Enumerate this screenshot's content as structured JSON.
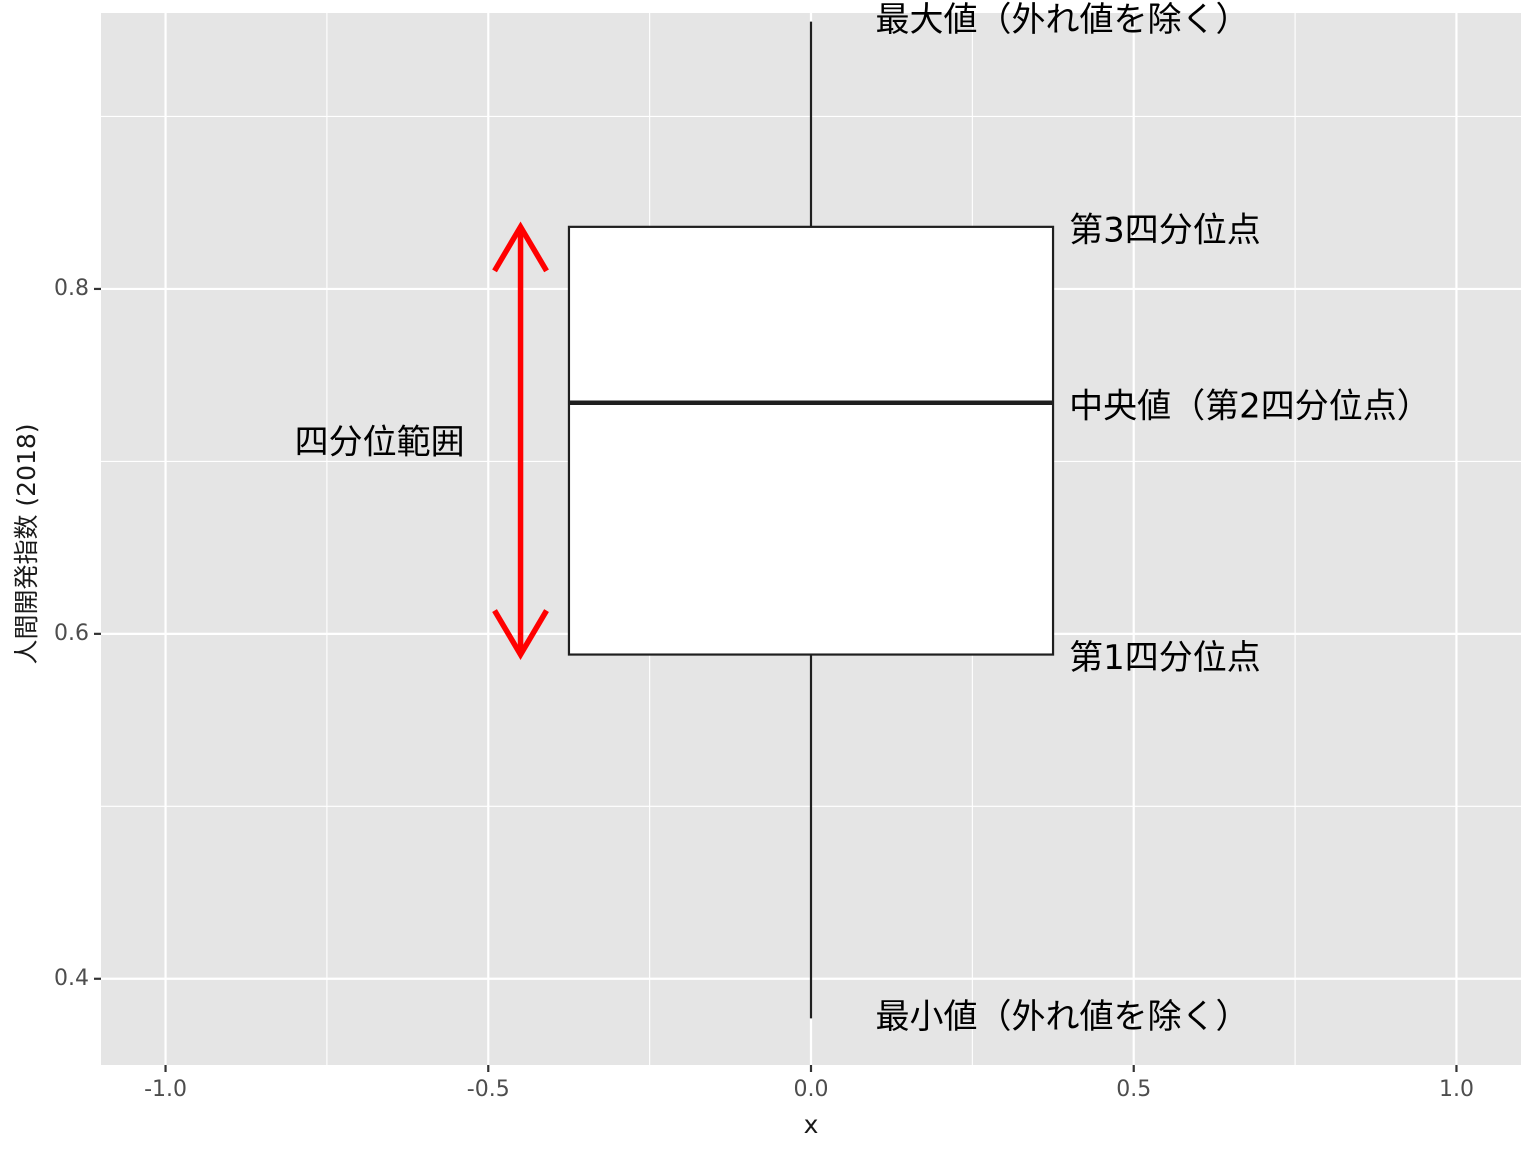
{
  "chart_data": {
    "type": "boxplot",
    "xlabel": "x",
    "ylabel": "人間開発指数 (2018)",
    "xlim": [
      -1.1,
      1.1
    ],
    "ylim": [
      0.35,
      0.96
    ],
    "x_ticks": [
      -1.0,
      -0.5,
      0.0,
      0.5,
      1.0
    ],
    "x_tick_labels": [
      "-1.0",
      "-0.5",
      "0.0",
      "0.5",
      "1.0"
    ],
    "y_ticks": [
      0.4,
      0.6,
      0.8
    ],
    "y_tick_labels": [
      "0.4",
      "0.6",
      "0.8"
    ],
    "grid": true,
    "box": {
      "x_center": 0.0,
      "x_left": -0.375,
      "x_right": 0.375,
      "whisker_low": 0.377,
      "q1": 0.588,
      "median": 0.734,
      "q3": 0.836,
      "whisker_high": 0.955
    },
    "annotations": [
      {
        "text": "最大値（外れ値を除く）",
        "x": 0.1,
        "y": 0.955
      },
      {
        "text": "第3四分位点",
        "x": 0.4,
        "y": 0.833
      },
      {
        "text": "中央値（第2四分位点）",
        "x": 0.4,
        "y": 0.731
      },
      {
        "text": "第1四分位点",
        "x": 0.4,
        "y": 0.585
      },
      {
        "text": "最小値（外れ値を除く）",
        "x": 0.1,
        "y": 0.377
      },
      {
        "text": "四分位範囲",
        "x": -0.8,
        "y": 0.71
      }
    ],
    "iqr_arrow": {
      "x": -0.45,
      "y_from": 0.588,
      "y_to": 0.836,
      "color": "#ff0000"
    },
    "colors": {
      "panel": "#e5e5e5",
      "grid": "#ffffff",
      "box_fill": "#ffffff",
      "box_line": "#1f1f1f"
    }
  }
}
